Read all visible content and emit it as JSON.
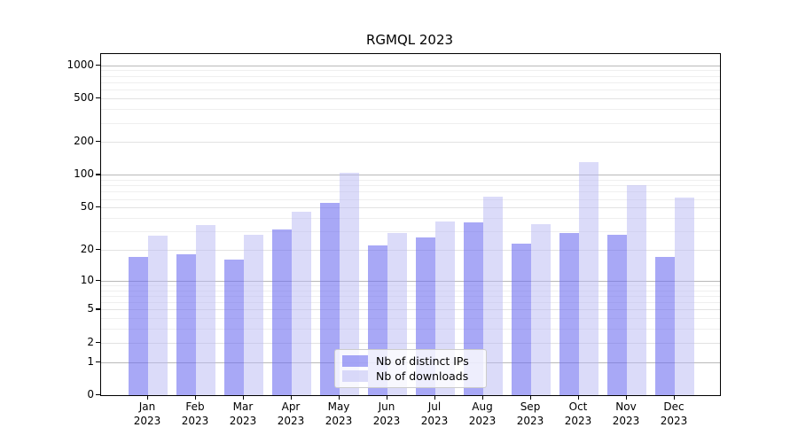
{
  "title": "RGMQL 2023",
  "legend": {
    "items": [
      {
        "label": "Nb of distinct IPs",
        "color": "rgba(105,105,240,0.58)"
      },
      {
        "label": "Nb of downloads",
        "color": "rgba(186,186,243,0.52)"
      }
    ],
    "position": "lower center"
  },
  "colors": {
    "bar_distinct_ips": "rgba(105,105,240,0.58)",
    "bar_downloads": "rgba(186,186,243,0.52)",
    "grid_decade": "#b9b9b9",
    "grid_mid": "#e2e2e2",
    "grid_minor": "#efefef",
    "axis": "#000000"
  },
  "chart_data": {
    "type": "bar",
    "title": "RGMQL 2023",
    "categories": [
      "Jan 2023",
      "Feb 2023",
      "Mar 2023",
      "Apr 2023",
      "May 2023",
      "Jun 2023",
      "Jul 2023",
      "Aug 2023",
      "Sep 2023",
      "Oct 2023",
      "Nov 2023",
      "Dec 2023"
    ],
    "series": [
      {
        "name": "Nb of distinct IPs",
        "values": [
          17,
          18,
          16,
          31,
          55,
          22,
          26,
          36,
          23,
          29,
          28,
          17
        ]
      },
      {
        "name": "Nb of downloads",
        "values": [
          27,
          34,
          28,
          46,
          105,
          29,
          37,
          63,
          35,
          130,
          80,
          62
        ]
      }
    ],
    "xlabel": "",
    "ylabel": "",
    "yscale": "log1p",
    "yticks": [
      0,
      1,
      2,
      5,
      10,
      20,
      50,
      100,
      200,
      500,
      1000
    ],
    "minor_gridline_factors": [
      3,
      4,
      6,
      7,
      8,
      9
    ],
    "ylim": [
      0,
      1270
    ],
    "grid": "on",
    "legend_position": "lower center"
  }
}
